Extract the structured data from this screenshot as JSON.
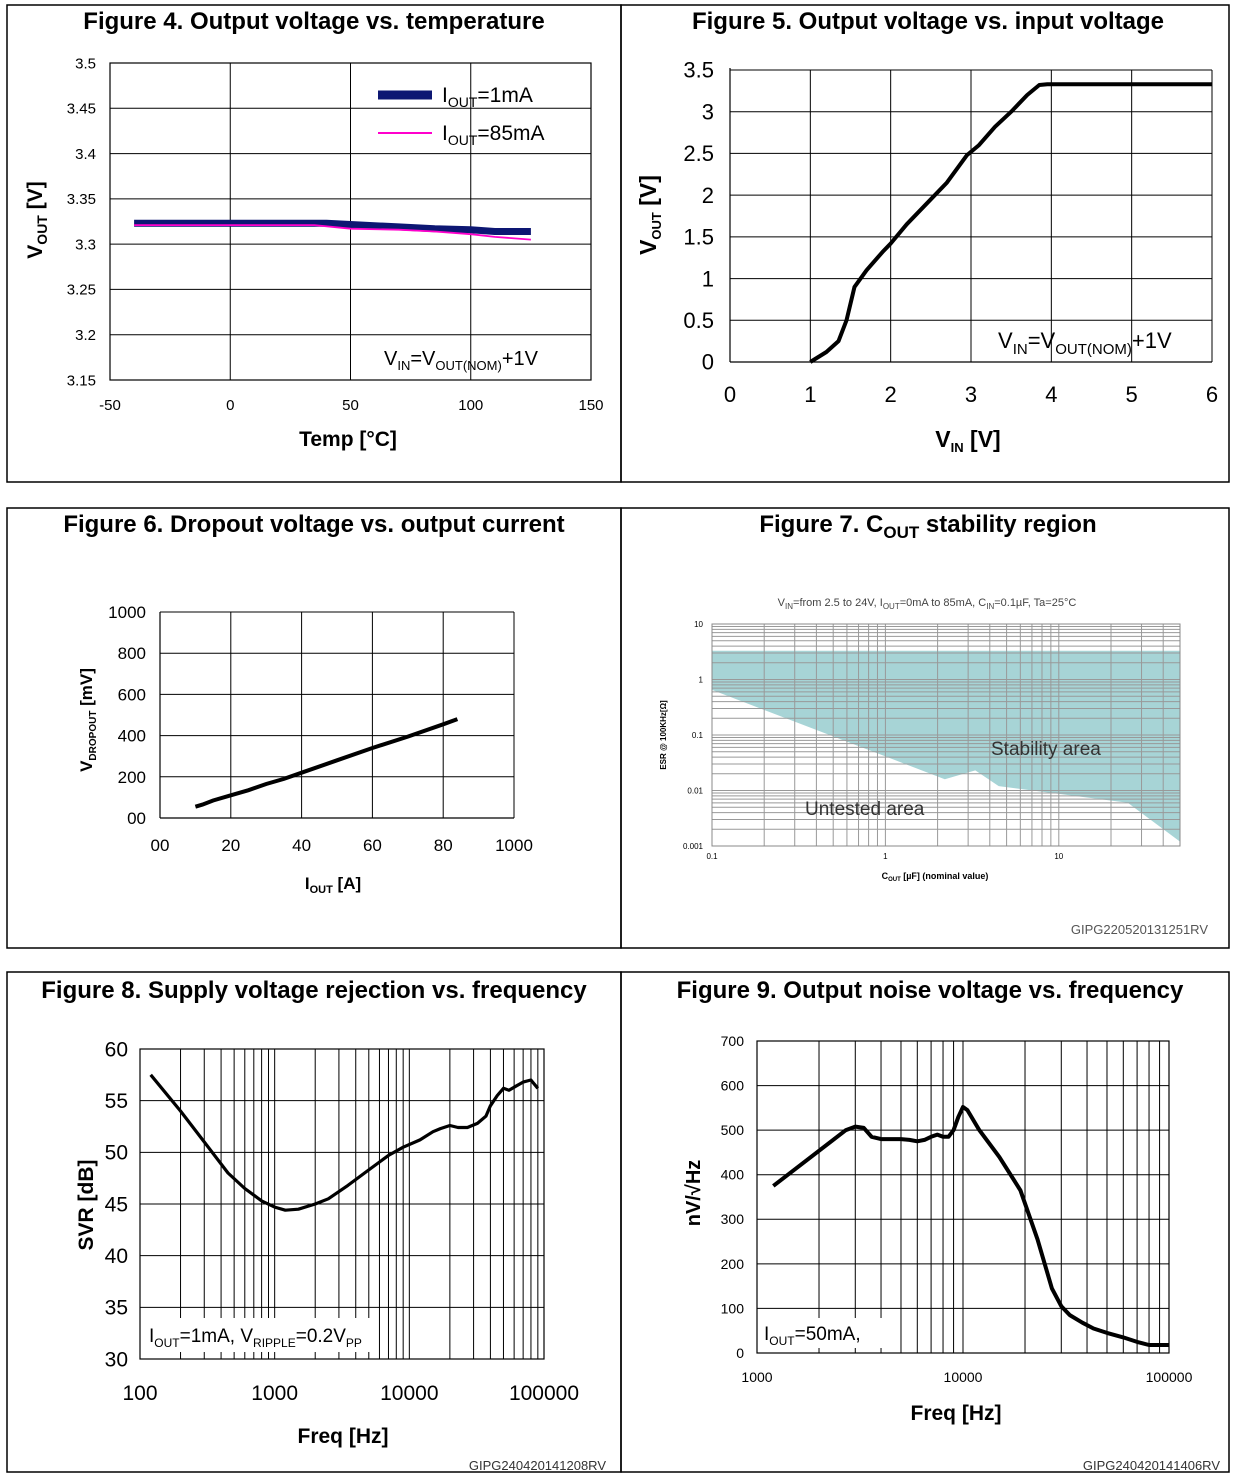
{
  "colors": {
    "border": "#000000",
    "iout1": "#0d1773",
    "iout85": "#ff00cc",
    "stability": "#a7d4d6",
    "stabilityGrid": "#999999"
  },
  "figures": [
    {
      "title": "Figure 4. Output voltage vs. temperature",
      "xlabel": "Temp [°C]",
      "ylabel": {
        "base": "V",
        "sub": "OUT",
        "rest": " [V]"
      },
      "legend": [
        {
          "base": "I",
          "sub": "OUT",
          "rest": "=1mA"
        },
        {
          "base": "I",
          "sub": "OUT",
          "rest": "=85mA"
        }
      ],
      "annotation": {
        "a": "V",
        "as": "IN",
        "b": "=V",
        "bs": "OUT(NOM)",
        "c": "+1V"
      }
    },
    {
      "title": "Figure 5. Output voltage vs. input voltage",
      "xlabel": {
        "base": "V",
        "sub": "IN",
        "rest": " [V]"
      },
      "ylabel": {
        "base": "V",
        "sub": "OUT",
        "rest": " [V]"
      },
      "annotation": {
        "a": "V",
        "as": "IN",
        "b": "=V",
        "bs": "OUT(NOM)",
        "c": "+1V"
      }
    },
    {
      "title": "Figure 6. Dropout voltage vs. output current",
      "xlabel": {
        "base": "I",
        "sub": "OUT",
        "rest": " [A]"
      },
      "ylabel": {
        "base": "V",
        "sub": "DROPOUT",
        "rest": " [mV]"
      }
    },
    {
      "title": {
        "base": "Figure 7. C",
        "sub": "OUT",
        "rest": " stability region"
      },
      "subtitle": {
        "a": "V",
        "as": "IN",
        "b": "=from 2.5 to 24V, I",
        "bs": "OUT",
        "c": "=0mA to 85mA, C",
        "cs": "IN",
        "d": "=0.1µF, Ta=25°C"
      },
      "xlabel": {
        "base": "C",
        "sub": "OUT",
        "rest": " [µF] (nominal value)"
      },
      "ylabel": "ESR @ 100KHz[Ω]",
      "regions": {
        "stable": "Stability area",
        "untested": "Untested area"
      },
      "code": "GIPG220520131251RV"
    },
    {
      "title": "Figure 8. Supply voltage rejection vs. frequency",
      "xlabel": "Freq [Hz]",
      "ylabel": "SVR [dB]",
      "annotation": {
        "a": "I",
        "as": "OUT",
        "b": "=1mA, V",
        "bs": "RIPPLE",
        "c": "=0.2V",
        "cs": "PP"
      },
      "code": "GIPG240420141208RV"
    },
    {
      "title": "Figure 9. Output noise voltage vs. frequency",
      "xlabel": "Freq [Hz]",
      "ylabel": "nV/√Hz",
      "annotation": {
        "a": "I",
        "as": "OUT",
        "b": "=50mA,"
      },
      "code": "GIPG240420141406RV"
    }
  ],
  "chart_data": [
    {
      "type": "line",
      "xlim": [
        -50,
        150
      ],
      "ylim": [
        3.15,
        3.5
      ],
      "xticks": [
        "-50",
        "0",
        "50",
        "100",
        "150"
      ],
      "yticks": [
        "3.15",
        "3.2",
        "3.25",
        "3.3",
        "3.35",
        "3.4",
        "3.45",
        "3.5"
      ],
      "series": [
        {
          "name": "IOUT=1mA",
          "x": [
            -40,
            0,
            25,
            40,
            55,
            70,
            85,
            100,
            110,
            125
          ],
          "y": [
            3.323,
            3.323,
            3.323,
            3.323,
            3.321,
            3.319,
            3.317,
            3.316,
            3.314,
            3.314
          ]
        },
        {
          "name": "IOUT=85mA",
          "x": [
            -40,
            0,
            25,
            35,
            50,
            70,
            85,
            100,
            110,
            125
          ],
          "y": [
            3.321,
            3.321,
            3.321,
            3.321,
            3.317,
            3.316,
            3.314,
            3.311,
            3.308,
            3.305
          ]
        }
      ]
    },
    {
      "type": "line",
      "xlim": [
        0,
        6
      ],
      "ylim": [
        0,
        3.5
      ],
      "xticks": [
        "0",
        "1",
        "2",
        "3",
        "4",
        "5",
        "6"
      ],
      "yticks": [
        "0",
        "0.5",
        "1",
        "1.5",
        "2",
        "2.5",
        "3",
        "3.5"
      ],
      "series": [
        {
          "x": [
            1,
            1.2,
            1.35,
            1.45,
            1.5,
            1.55,
            1.7,
            1.9,
            2,
            2.2,
            2.5,
            2.7,
            2.95,
            3.1,
            3.3,
            3.5,
            3.7,
            3.85,
            3.95,
            6
          ],
          "y": [
            0,
            0.12,
            0.25,
            0.5,
            0.7,
            0.9,
            1.1,
            1.32,
            1.42,
            1.65,
            1.95,
            2.15,
            2.48,
            2.6,
            2.82,
            3.0,
            3.2,
            3.32,
            3.33,
            3.33
          ]
        }
      ]
    },
    {
      "type": "line",
      "xlim": [
        0,
        100
      ],
      "ylim": [
        0,
        1000
      ],
      "xticks": [
        "00",
        "20",
        "40",
        "60",
        "80",
        "1000"
      ],
      "yticks": [
        "00",
        "200",
        "400",
        "600",
        "800",
        "1000"
      ],
      "series": [
        {
          "x": [
            10,
            12,
            15,
            20,
            25,
            30,
            35,
            40,
            50,
            60,
            70,
            80,
            84
          ],
          "y": [
            55,
            65,
            85,
            110,
            135,
            165,
            190,
            220,
            280,
            340,
            395,
            455,
            480
          ]
        }
      ]
    },
    {
      "type": "area",
      "xscale": "log",
      "yscale": "log",
      "xlim": [
        0.1,
        50
      ],
      "ylim": [
        0.001,
        10
      ],
      "xticks": [
        "0.1",
        "1",
        "10"
      ],
      "yticks": [
        "10",
        "1",
        "0.1",
        "0.01",
        "0.001"
      ],
      "upper_y": 3.3,
      "lower_boundary": {
        "x": [
          0.1,
          2.2,
          3.3,
          4.5,
          25,
          50
        ],
        "y": [
          0.65,
          0.016,
          0.023,
          0.012,
          0.006,
          0.0012
        ]
      }
    },
    {
      "type": "line",
      "xscale": "log",
      "xlim": [
        100,
        100000
      ],
      "ylim": [
        30,
        60
      ],
      "xticks": [
        "100",
        "1000",
        "10000",
        "100000"
      ],
      "yticks": [
        "30",
        "35",
        "40",
        "45",
        "50",
        "55",
        "60"
      ],
      "series": [
        {
          "x": [
            120,
            200,
            300,
            450,
            600,
            800,
            1000,
            1200,
            1500,
            2000,
            2500,
            3500,
            5000,
            7000,
            9000,
            12000,
            15000,
            17000,
            20000,
            23000,
            27000,
            32000,
            37000,
            40000,
            45000,
            50000,
            55000,
            60000,
            70000,
            80000,
            90000
          ],
          "y": [
            57.5,
            54,
            51,
            48,
            46.5,
            45.3,
            44.7,
            44.4,
            44.5,
            45,
            45.5,
            46.8,
            48.3,
            49.7,
            50.5,
            51.2,
            52,
            52.3,
            52.6,
            52.4,
            52.4,
            52.8,
            53.5,
            54.5,
            55.5,
            56.2,
            56.0,
            56.3,
            56.8,
            57.0,
            56.2
          ]
        }
      ]
    },
    {
      "type": "line",
      "xscale": "log",
      "xlim": [
        1000,
        100000
      ],
      "ylim": [
        0,
        700
      ],
      "xticks": [
        "1000",
        "10000",
        "100000"
      ],
      "yticks": [
        "0",
        "100",
        "200",
        "300",
        "400",
        "500",
        "600",
        "700"
      ],
      "series": [
        {
          "x": [
            1200,
            2700,
            3000,
            3300,
            3600,
            4000,
            5000,
            5500,
            6000,
            6500,
            7000,
            7500,
            8000,
            8500,
            9000,
            9500,
            10000,
            10500,
            12000,
            15000,
            19000,
            23000,
            27000,
            30000,
            33000,
            38000,
            43000,
            50000,
            60000,
            70000,
            80000,
            100000
          ],
          "y": [
            375,
            500,
            508,
            505,
            485,
            480,
            480,
            478,
            475,
            478,
            485,
            490,
            485,
            485,
            500,
            530,
            552,
            545,
            500,
            440,
            365,
            255,
            145,
            105,
            85,
            68,
            55,
            45,
            35,
            25,
            18,
            18
          ]
        }
      ]
    }
  ]
}
